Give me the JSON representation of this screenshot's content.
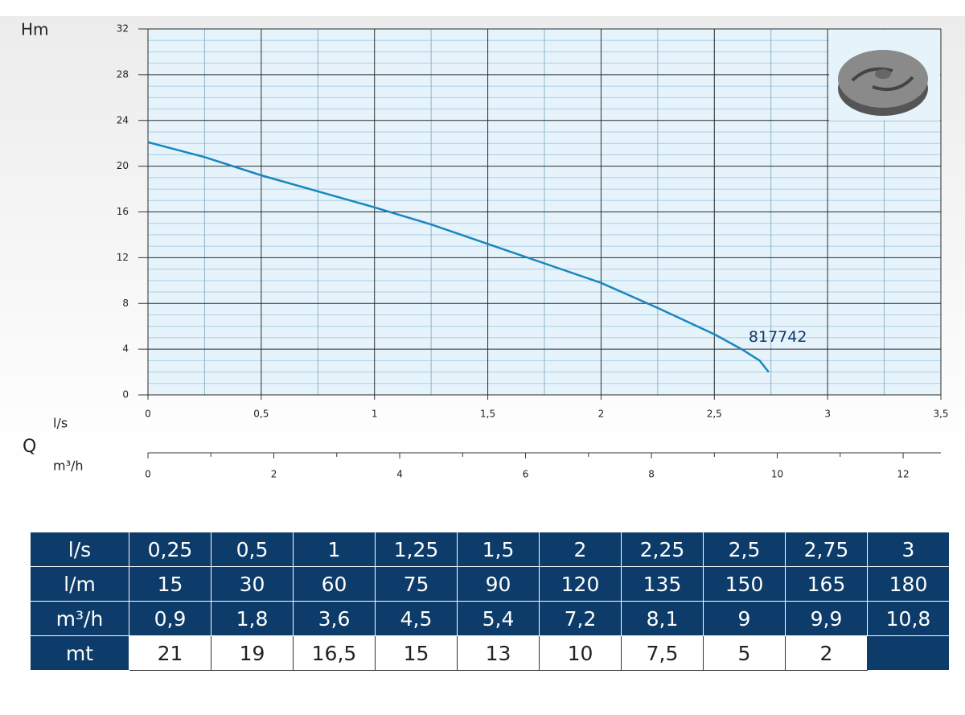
{
  "chart_data": {
    "type": "line",
    "y_label": "Hm",
    "x_label": "l/s",
    "x2_label": "m³/h",
    "q_label": "Q",
    "xlim": [
      0,
      3.5
    ],
    "xticks": [
      0,
      {
        "value": 0.5,
        "label": "0,5"
      },
      1,
      {
        "value": 1.5,
        "label": "1,5"
      },
      2,
      {
        "value": 2.5,
        "label": "2,5"
      },
      3,
      {
        "value": 3.5,
        "label": "3,5"
      }
    ],
    "x2lim": [
      0,
      12.6
    ],
    "x2ticks": [
      0,
      2,
      4,
      6,
      8,
      10,
      12
    ],
    "ylim": [
      0,
      32
    ],
    "yticks": [
      0,
      4,
      8,
      12,
      16,
      20,
      24,
      28,
      32
    ],
    "grid": true,
    "series": [
      {
        "name": "817742",
        "color": "#1a86bf",
        "x": [
          0,
          0.25,
          0.5,
          0.75,
          1,
          1.25,
          1.5,
          1.75,
          2,
          2.25,
          2.5,
          2.62,
          2.7,
          2.74
        ],
        "values": [
          22.1,
          20.8,
          19.2,
          17.8,
          16.4,
          14.9,
          13.2,
          11.5,
          9.8,
          7.6,
          5.3,
          4,
          3,
          2
        ]
      }
    ]
  },
  "table": {
    "rows": [
      [
        "l/s",
        "0,25",
        "0,5",
        "1",
        "1,25",
        "1,5",
        "2",
        "2,25",
        "2,5",
        "2,75",
        "3"
      ],
      [
        "l/m",
        "15",
        "30",
        "60",
        "75",
        "90",
        "120",
        "135",
        "150",
        "165",
        "180"
      ],
      [
        "m³/h",
        "0,9",
        "1,8",
        "3,6",
        "4,5",
        "5,4",
        "7,2",
        "8,1",
        "9",
        "9,9",
        "10,8"
      ],
      [
        "mt",
        "21",
        "19",
        "16,5",
        "15",
        "13",
        "10",
        "7,5",
        "5",
        "2"
      ]
    ]
  }
}
